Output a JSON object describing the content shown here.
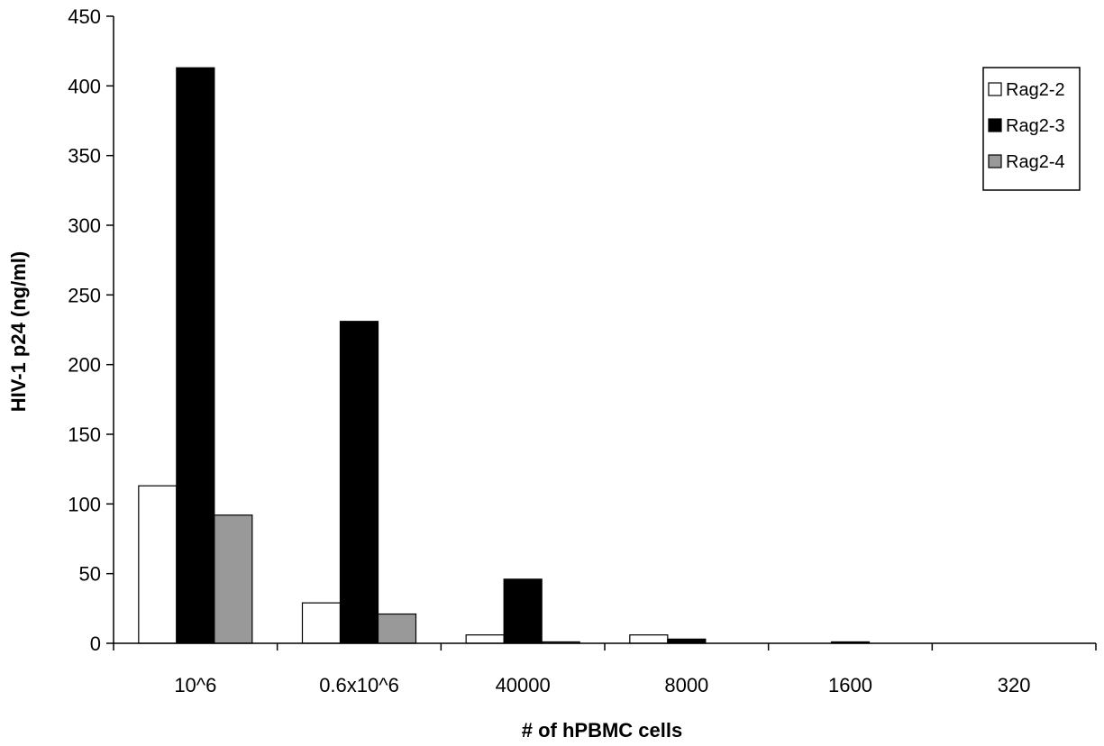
{
  "chart_data": {
    "type": "bar",
    "categories": [
      "10^6",
      "0.6x10^6",
      "40000",
      "8000",
      "1600",
      "320"
    ],
    "series": [
      {
        "name": "Rag2-2",
        "color": "#ffffff",
        "values": [
          113,
          29,
          6,
          6,
          0,
          0
        ]
      },
      {
        "name": "Rag2-3",
        "color": "#000000",
        "values": [
          413,
          231,
          46,
          3,
          1,
          0
        ]
      },
      {
        "name": "Rag2-4",
        "color": "#999999",
        "values": [
          92,
          21,
          1,
          0,
          0,
          0
        ]
      }
    ],
    "title": "",
    "xlabel": "# of hPBMC cells",
    "ylabel": "HIV-1 p24 (ng/ml)",
    "ylim": [
      0,
      450
    ],
    "yticks": [
      "0",
      "50",
      "100",
      "150",
      "200",
      "250",
      "300",
      "350",
      "400",
      "450"
    ],
    "grid": false,
    "legend_position": "top-right"
  }
}
